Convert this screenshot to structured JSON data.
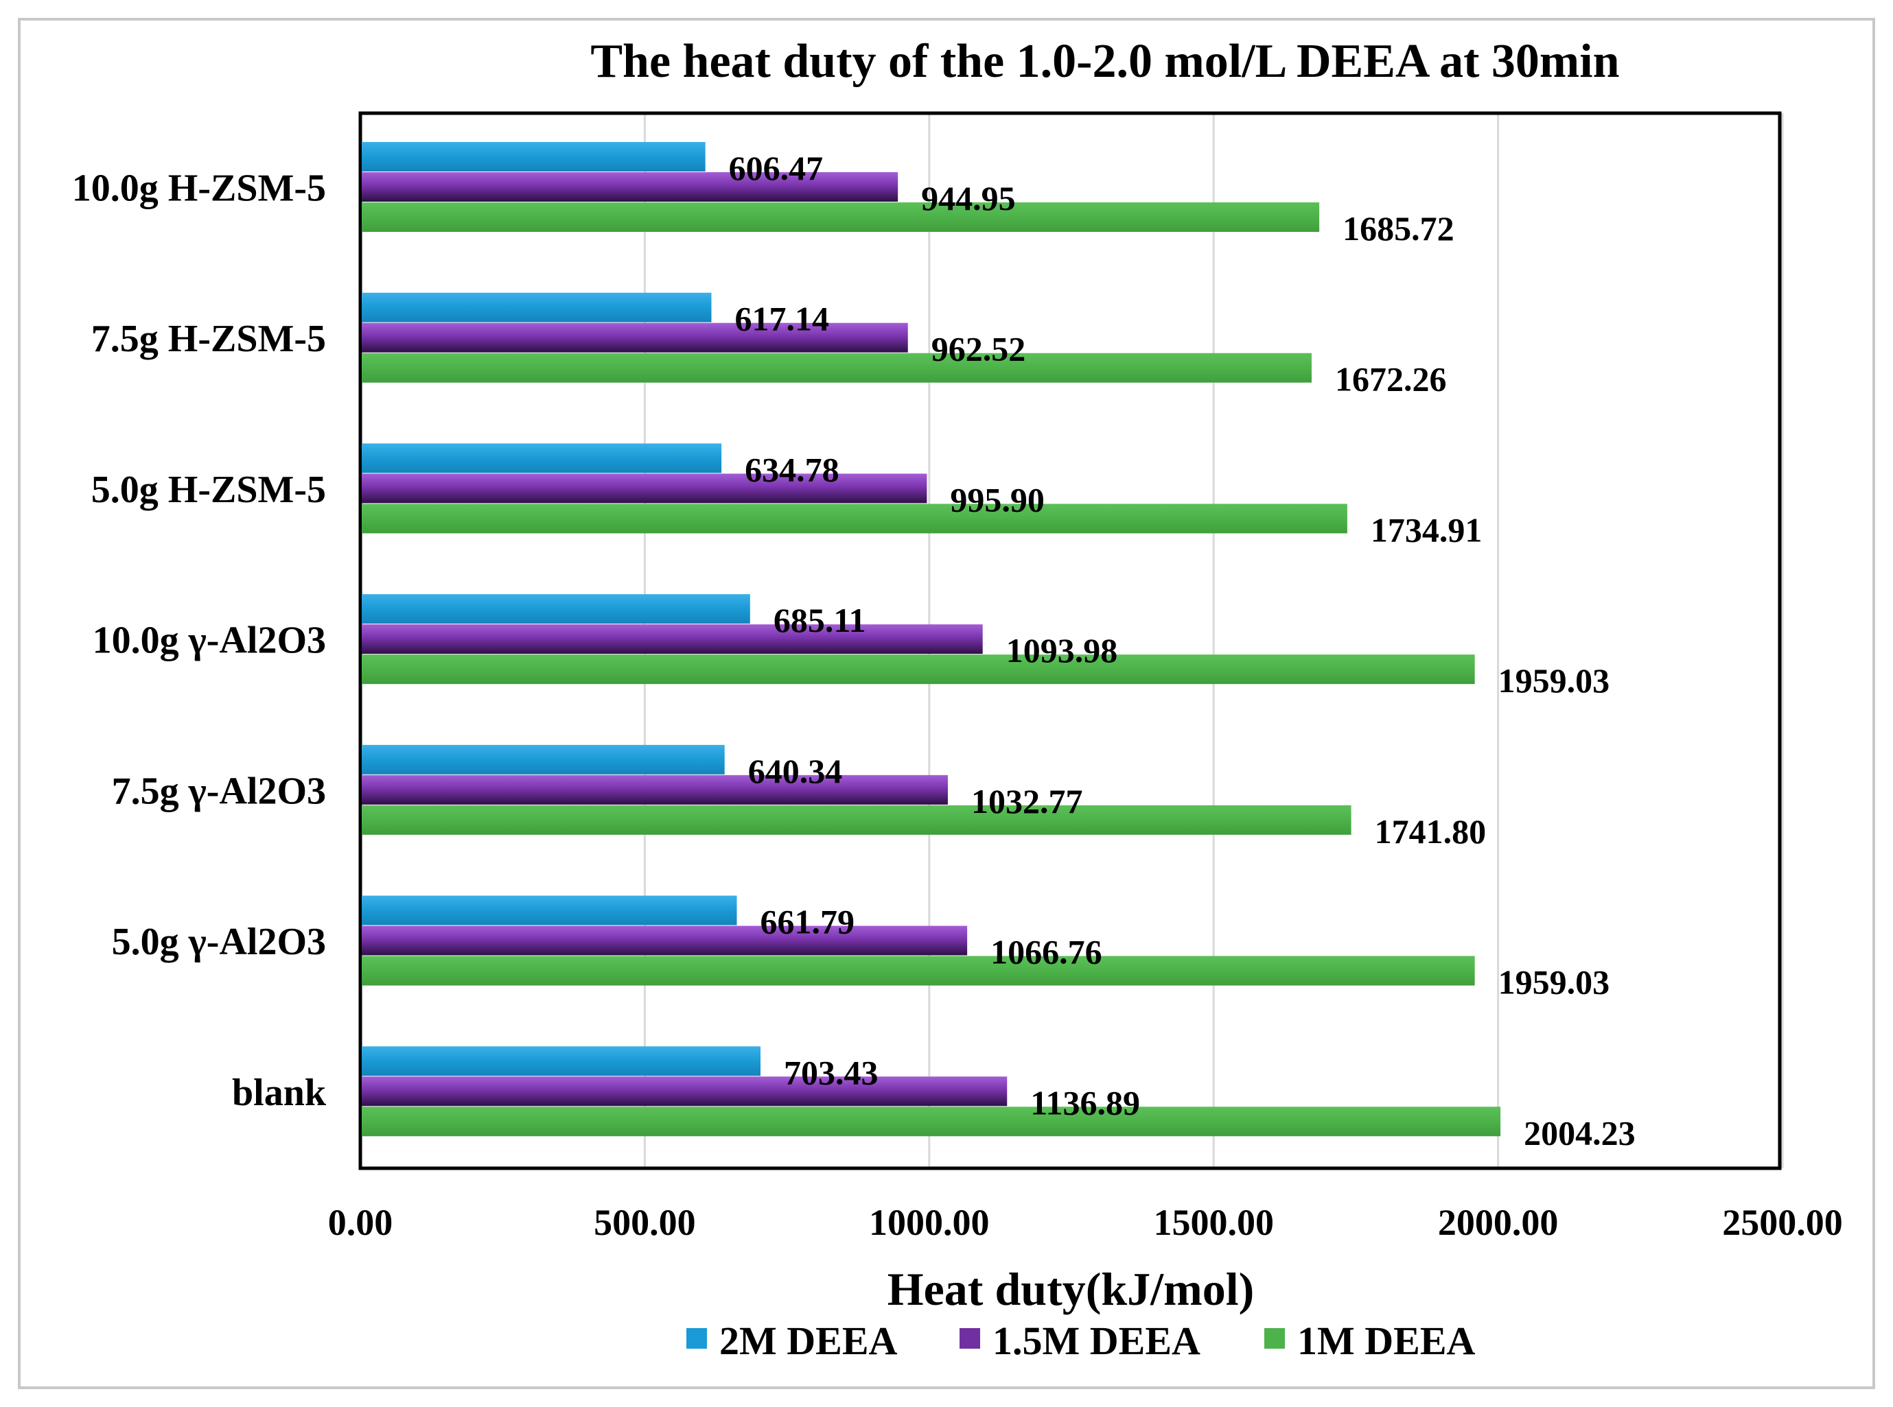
{
  "chart_data": {
    "type": "bar",
    "orientation": "horizontal",
    "title": "The heat duty of the 1.0-2.0 mol/L DEEA  at  30min",
    "xlabel": "Heat  duty(kJ/mol)",
    "ylabel": "",
    "xlim": [
      0,
      2500
    ],
    "x_ticks": [
      "0.00",
      "500.00",
      "1000.00",
      "1500.00",
      "2000.00",
      "2500.00"
    ],
    "x_tick_values": [
      0,
      500,
      1000,
      1500,
      2000,
      2500
    ],
    "grid": "vertical",
    "legend_position": "bottom",
    "categories": [
      "10.0g H-ZSM-5",
      "7.5g H-ZSM-5",
      "5.0g H-ZSM-5",
      "10.0g γ-Al2O3",
      "7.5g γ-Al2O3",
      "5.0g γ-Al2O3",
      "blank"
    ],
    "series": [
      {
        "name": "2M DEEA",
        "color": "#1a9ad6",
        "values": [
          606.47,
          617.14,
          634.78,
          685.11,
          640.34,
          661.79,
          703.43
        ],
        "labels": [
          "606.47",
          "617.14",
          "634.78",
          "685.11",
          "640.34",
          "661.79",
          "703.43"
        ]
      },
      {
        "name": "1.5M DEEA",
        "color": "#7030a0",
        "values": [
          944.95,
          962.52,
          995.9,
          1093.98,
          1032.77,
          1066.76,
          1136.89
        ],
        "labels": [
          "944.95",
          "962.52",
          "995.90",
          "1093.98",
          "1032.77",
          "1066.76",
          "1136.89"
        ]
      },
      {
        "name": "1M DEEA",
        "color": "#4db24a",
        "values": [
          1685.72,
          1672.26,
          1734.91,
          1959.03,
          1741.8,
          1959.03,
          2004.23
        ],
        "labels": [
          "1685.72",
          "1672.26",
          "1734.91",
          "1959.03",
          "1741.80",
          "1959.03",
          "2004.23"
        ]
      }
    ]
  }
}
